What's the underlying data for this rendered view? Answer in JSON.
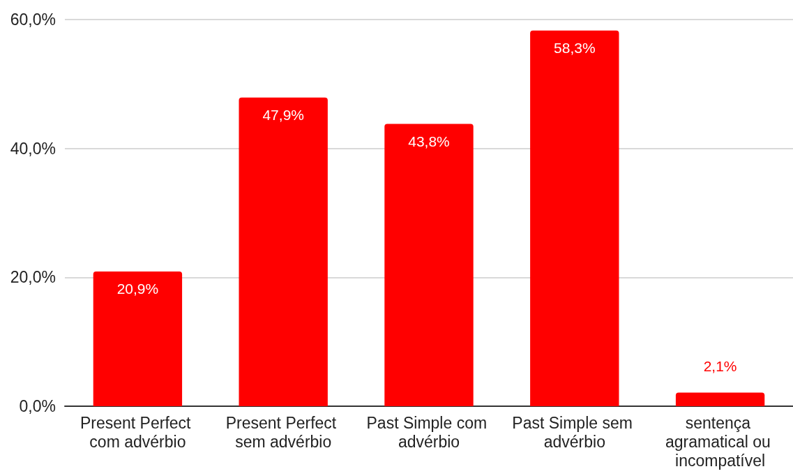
{
  "chart_data": {
    "type": "bar",
    "categories": [
      "Present Perfect com advérbio",
      "Present Perfect sem advérbio",
      "Past Simple com advérbio",
      "Past Simple sem advérbio",
      "sentença agramatical ou incompatível"
    ],
    "values": [
      20.9,
      47.9,
      43.8,
      58.3,
      2.1
    ],
    "color": "#ff0000",
    "value_labels": [
      "20,9%",
      "47,9%",
      "43,8%",
      "58,3%",
      "2,1%"
    ],
    "ylim": [
      0,
      60
    ],
    "yticks": [
      {
        "value": 0,
        "label": "0,0%"
      },
      {
        "value": 20,
        "label": "20,0%"
      },
      {
        "value": 40,
        "label": "40,0%"
      },
      {
        "value": 60,
        "label": "60,0%"
      }
    ],
    "grid": "y"
  }
}
